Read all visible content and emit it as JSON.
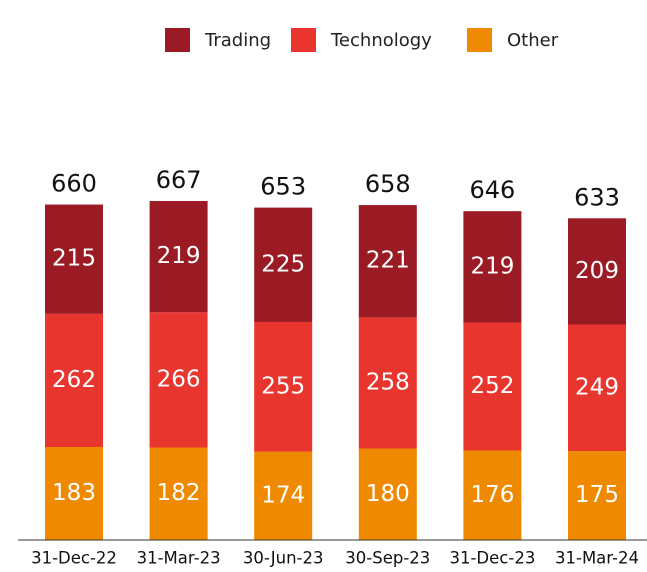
{
  "chart_data": {
    "type": "stacked-bar",
    "categories": [
      "31-Dec-22",
      "31-Mar-23",
      "30-Jun-23",
      "30-Sep-23",
      "31-Dec-23",
      "31-Mar-24"
    ],
    "series": [
      {
        "name": "Trading",
        "color": "#9b1b24",
        "values": [
          215,
          219,
          225,
          221,
          219,
          209
        ]
      },
      {
        "name": "Technology",
        "color": "#e8352e",
        "values": [
          262,
          266,
          255,
          258,
          252,
          249
        ]
      },
      {
        "name": "Other",
        "color": "#ef8a00",
        "values": [
          183,
          182,
          174,
          180,
          176,
          175
        ]
      }
    ],
    "totals": [
      660,
      667,
      653,
      658,
      646,
      633
    ],
    "legend": "top"
  }
}
